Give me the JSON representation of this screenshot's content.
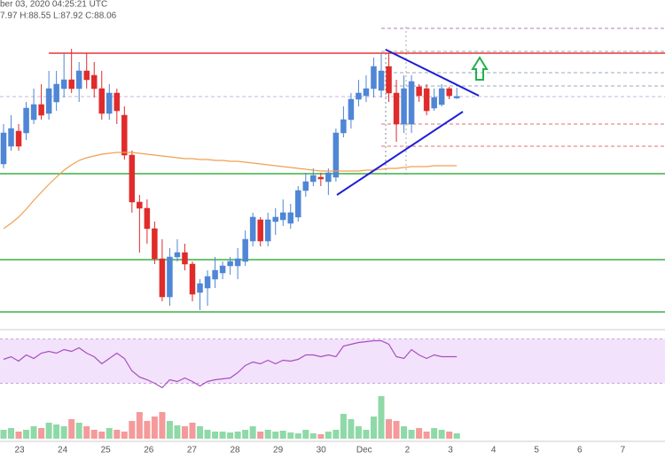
{
  "header": {
    "date": "ber 03, 2020 04:25:21 UTC",
    "ohlc": "7.97 H:88.55 L:87.92 C:88.06"
  },
  "chart_data": {
    "type": "candlestick",
    "x_labels": [
      "23",
      "24",
      "25",
      "26",
      "27",
      "28",
      "29",
      "30",
      "Dec",
      "2",
      "3",
      "4",
      "5",
      "6",
      "7"
    ],
    "ylim": [
      75,
      93.5
    ],
    "up_color": "#4f86d6",
    "down_color": "#e02b2b",
    "open": [
      84.25,
      85.25,
      86.1,
      86,
      86.75,
      87.6,
      87.1,
      87.75,
      88.5,
      89,
      88.5,
      89.5,
      89.25,
      88.5,
      87.1,
      88.25,
      87,
      84.75,
      82.1,
      81.75,
      80.6,
      78.9,
      76.75,
      79,
      79.25,
      78.6,
      77,
      77.25,
      77.75,
      78.1,
      78.5,
      78.5,
      78.75,
      79.9,
      81.1,
      79.9,
      81,
      81.1,
      80.9,
      81.25,
      82.75,
      83.25,
      83.5,
      83.25,
      83.5,
      86,
      86.75,
      87.9,
      88.1,
      88.5,
      88.4,
      89.75,
      88.25,
      86.5,
      86.5,
      88.6,
      88.5,
      87.4,
      87.6,
      88.5,
      87.97
    ],
    "close": [
      86,
      86.25,
      85.25,
      87.4,
      87.6,
      87,
      88.5,
      88.75,
      89,
      88.5,
      89.5,
      89,
      88.5,
      87.1,
      88.25,
      87.25,
      84.75,
      82.1,
      81.75,
      80.6,
      78.9,
      76.75,
      79,
      79.25,
      78.6,
      76.9,
      77.5,
      77.9,
      78.25,
      78.5,
      78.75,
      78.9,
      80,
      81.25,
      79.9,
      81.1,
      81.25,
      81.5,
      81.5,
      82.75,
      83.25,
      83.6,
      83.4,
      83.75,
      86,
      86.75,
      87.9,
      88.25,
      88.5,
      89.75,
      89.5,
      88.25,
      86.5,
      88.5,
      88.9,
      88.1,
      87.25,
      88,
      88.5,
      88.1,
      88.06
    ],
    "high": [
      86.5,
      87,
      86.5,
      87.75,
      88.5,
      88.75,
      89.5,
      89.5,
      90.5,
      90.75,
      90,
      90.5,
      90,
      89.5,
      88.75,
      88.5,
      87.5,
      85,
      82.5,
      82.25,
      81,
      80,
      79.5,
      80,
      79.75,
      78.75,
      77.75,
      78.25,
      79,
      78.75,
      79,
      79.5,
      80.5,
      81.5,
      81.25,
      81.5,
      81.75,
      82.25,
      82,
      83,
      83.75,
      84,
      83.75,
      84,
      86.25,
      87.5,
      88.25,
      89,
      89.25,
      90.25,
      90.5,
      90.5,
      89,
      89.25,
      89.25,
      88.75,
      88.75,
      88.5,
      88.75,
      88.6,
      88.55
    ],
    "low": [
      84,
      85,
      85,
      85.6,
      86.5,
      86.75,
      86.75,
      87.25,
      88,
      88.25,
      87.75,
      88.5,
      88,
      86.75,
      86.75,
      86.5,
      84.5,
      81.5,
      79.25,
      79.75,
      78.6,
      76.5,
      76.25,
      78.75,
      78.25,
      76.5,
      76,
      76.25,
      77.25,
      77.75,
      78,
      77.75,
      78.5,
      79.6,
      79.6,
      79.6,
      80.25,
      80.75,
      80.6,
      81,
      82.4,
      83,
      83,
      82.5,
      83.25,
      85.75,
      86.25,
      87.5,
      87.75,
      88,
      88,
      87.75,
      85.5,
      86,
      86,
      87.75,
      87,
      87.25,
      87.5,
      87.9,
      87.92
    ],
    "ma": {
      "color": "#f0a050",
      "values": [
        80.6,
        80.9,
        81.25,
        81.7,
        82.2,
        82.65,
        83.1,
        83.5,
        83.9,
        84.2,
        84.45,
        84.6,
        84.7,
        84.8,
        84.85,
        84.9,
        84.9,
        84.9,
        84.85,
        84.8,
        84.75,
        84.7,
        84.65,
        84.6,
        84.55,
        84.55,
        84.5,
        84.5,
        84.45,
        84.45,
        84.4,
        84.4,
        84.35,
        84.3,
        84.25,
        84.2,
        84.15,
        84.1,
        84.05,
        84,
        83.95,
        83.9,
        83.85,
        83.85,
        83.85,
        83.85,
        83.85,
        83.85,
        83.9,
        83.9,
        83.95,
        84,
        84,
        84.05,
        84.1,
        84.1,
        84.1,
        84.15,
        84.15,
        84.15,
        84.15
      ]
    },
    "rsi": {
      "color": "#a64fc0",
      "ylim": [
        20,
        80
      ],
      "band": [
        30,
        70
      ],
      "band_color": "#f3e2fb",
      "values": [
        51.6,
        54,
        50,
        55.6,
        52.4,
        57.2,
        58.8,
        57.2,
        60.4,
        58.8,
        62,
        57.2,
        54,
        47.6,
        52.4,
        57.2,
        52.4,
        41.2,
        35.6,
        33.2,
        30,
        26,
        33.2,
        31.6,
        34.8,
        31.6,
        27.6,
        31.6,
        33.2,
        34,
        34.8,
        39.6,
        46,
        49.2,
        47.6,
        50.8,
        47.6,
        50.8,
        50,
        51.6,
        55.6,
        55.6,
        54,
        55.6,
        54,
        63.6,
        65.2,
        66.8,
        67.6,
        68.4,
        68.4,
        65.2,
        54,
        52.4,
        60.4,
        55.6,
        52.4,
        55.6,
        54,
        54,
        54
      ]
    },
    "volume": {
      "ylim": [
        0,
        60
      ],
      "up_color": "#8fd9a8",
      "down_color": "#f49a9a",
      "values": [
        10,
        12,
        8,
        10,
        14,
        12,
        18,
        16,
        14,
        22,
        18,
        14,
        10,
        8,
        12,
        10,
        8,
        20,
        30,
        20,
        25,
        30,
        20,
        15,
        14,
        18,
        14,
        10,
        8,
        8,
        7,
        8,
        10,
        14,
        8,
        10,
        8,
        9,
        7,
        6,
        10,
        6,
        5,
        8,
        10,
        28,
        22,
        14,
        10,
        25,
        48,
        22,
        20,
        14,
        10,
        12,
        8,
        12,
        10,
        8,
        6
      ]
    }
  }
}
